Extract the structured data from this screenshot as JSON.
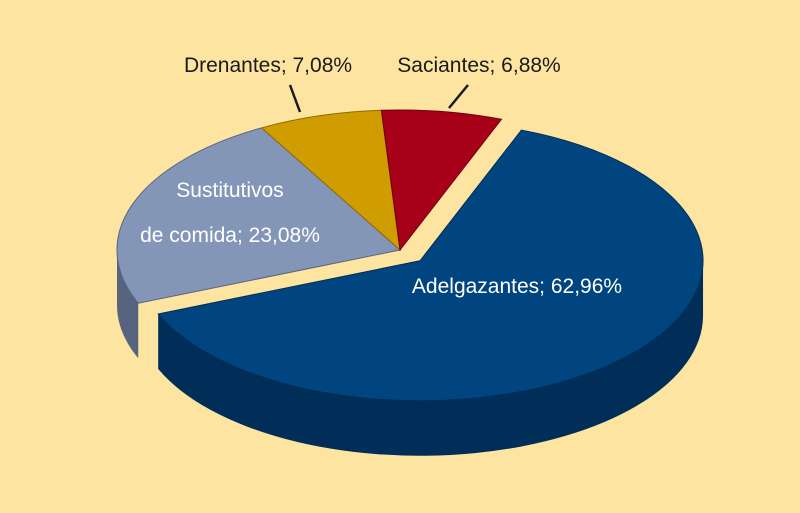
{
  "chart_data": {
    "type": "pie",
    "title": "",
    "three_d": true,
    "slices": [
      {
        "name": "Adelgazantes",
        "label": "Adelgazantes; 62,96%",
        "value": 62.96,
        "color": "#00457f",
        "side_color": "#002e58",
        "exploded": true
      },
      {
        "name": "Sustitutivos de comida",
        "label_lines": [
          "Sustitutivos",
          "de comida; 23,08%"
        ],
        "value": 23.08,
        "color": "#8496b8",
        "side_color": "#56647f",
        "exploded": false
      },
      {
        "name": "Drenantes",
        "label": "Drenantes; 7,08%",
        "value": 7.08,
        "color": "#cf9d00",
        "side_color": "#8e6c00",
        "exploded": false
      },
      {
        "name": "Saciantes",
        "label": "Saciantes; 6,88%",
        "value": 6.88,
        "color": "#a70019",
        "side_color": "#6e0010",
        "exploded": false
      }
    ],
    "background_color": "#fde4a0",
    "leader_line_color": "#1a1a1a"
  }
}
